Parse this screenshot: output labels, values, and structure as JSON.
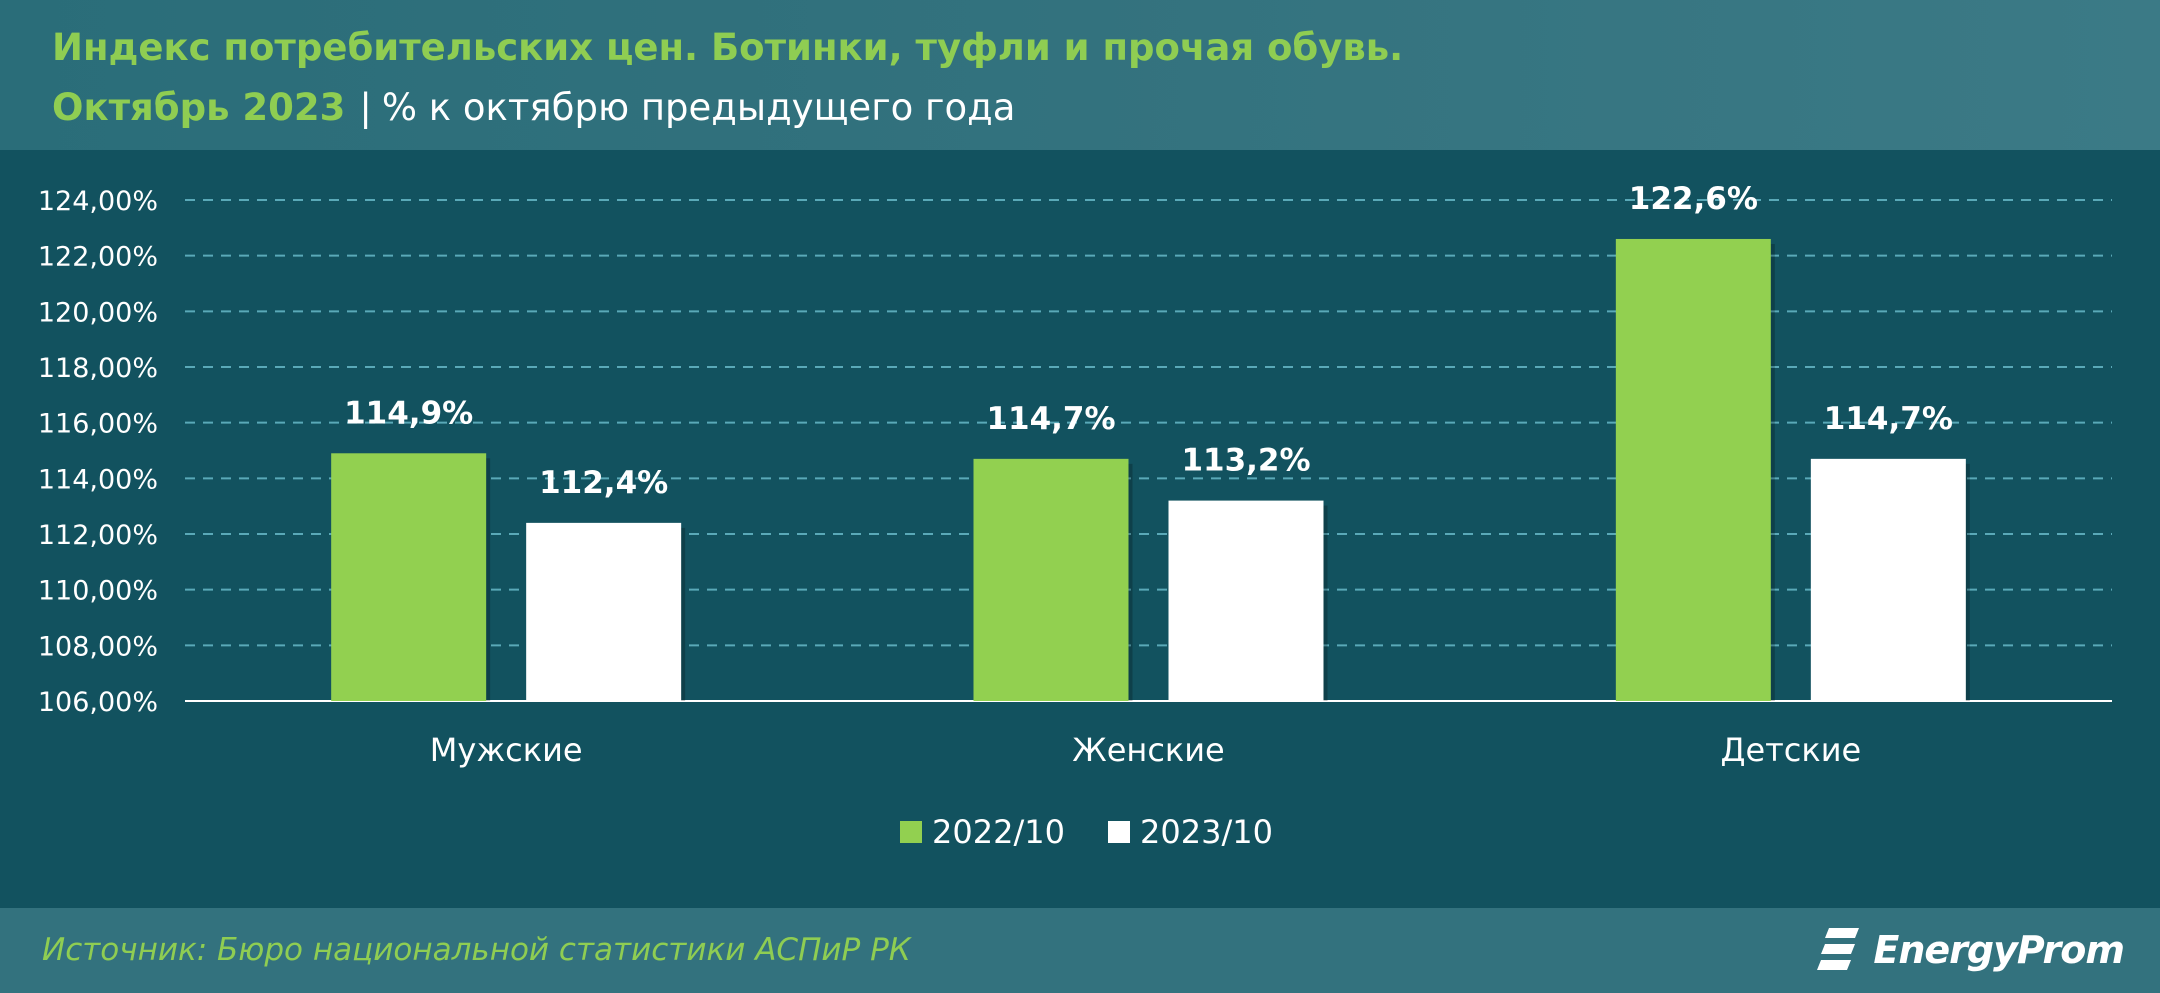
{
  "header": {
    "title_line1": "Индекс потребительских цен. Ботинки, туфли и прочая обувь.",
    "title_line2_highlight": "Октябрь 2023",
    "title_line2_separator": "|",
    "title_line2_rest": "% к октябрю предыдущего года"
  },
  "chart_data": {
    "type": "bar",
    "title": "Индекс потребительских цен. Ботинки, туфли и прочая обувь. Октябрь 2023 | % к октябрю предыдущего года",
    "categories": [
      "Мужские",
      "Женские",
      "Детские"
    ],
    "series": [
      {
        "name": "2022/10",
        "values": [
          114.9,
          114.7,
          122.6
        ],
        "labels": [
          "114,9%",
          "114,7%",
          "122,6%"
        ],
        "color": "#92d050"
      },
      {
        "name": "2023/10",
        "values": [
          112.4,
          113.2,
          114.7
        ],
        "labels": [
          "112,4%",
          "113,2%",
          "114,7%"
        ],
        "color": "#ffffff"
      }
    ],
    "ylim": [
      106,
      124
    ],
    "yticks": [
      106,
      108,
      110,
      112,
      114,
      116,
      118,
      120,
      122,
      124
    ],
    "ytick_labels": [
      "106,00%",
      "108,00%",
      "110,00%",
      "112,00%",
      "114,00%",
      "116,00%",
      "118,00%",
      "120,00%",
      "122,00%",
      "124,00%"
    ],
    "grid": true,
    "legend_position": "bottom",
    "xlabel": "",
    "ylabel": ""
  },
  "colors": {
    "background": "#12525f",
    "header_band": "#33727e",
    "accent_green": "#92d050",
    "title_green": "#8fcd52",
    "grid": "#5aa9b8"
  },
  "footer": {
    "source": "Источник: Бюро национальной статистики АСПиР РК",
    "logo_text": "EnergyProm",
    "logo_icon": "energyprom-logo-icon"
  }
}
